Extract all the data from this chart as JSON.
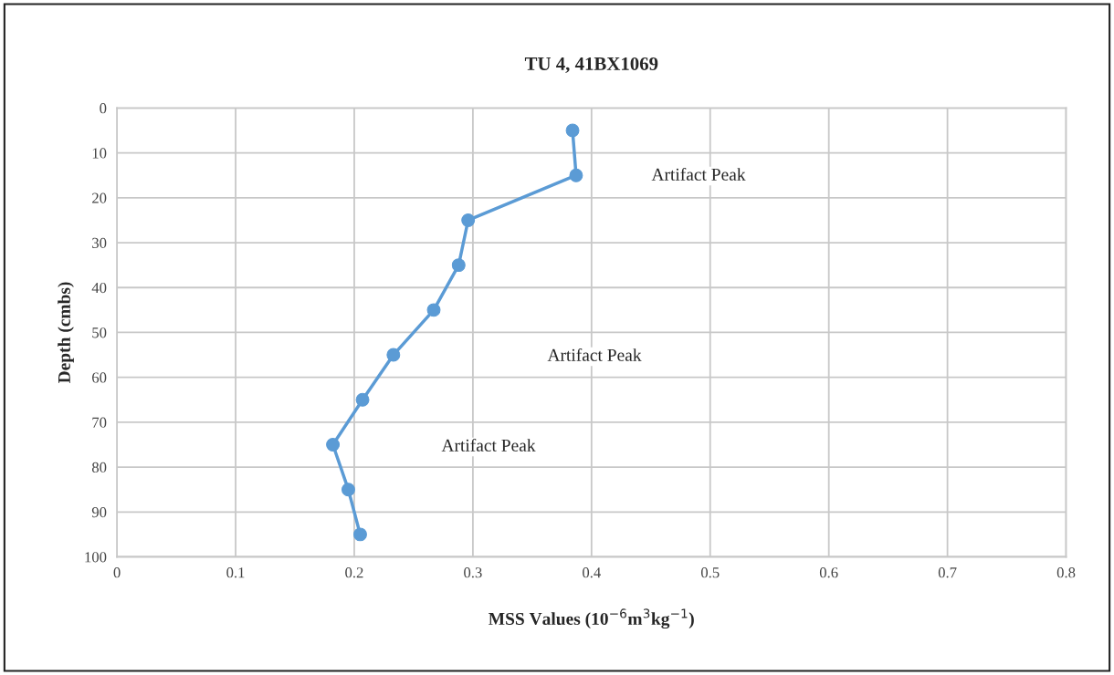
{
  "chart_data": {
    "type": "line",
    "title": "TU 4, 41BX1069",
    "xlabel": "MSS Values (10$^{−6}$m$^{3}$kg$^{−1}$)",
    "ylabel": "Depth (cmbs)",
    "x": [
      0.384,
      0.387,
      0.296,
      0.288,
      0.267,
      0.233,
      0.207,
      0.182,
      0.195,
      0.205
    ],
    "series": [
      {
        "color": "#5b9bd5",
        "values": [
          5,
          15,
          25,
          35,
          45,
          55,
          65,
          75,
          85,
          95
        ]
      }
    ],
    "xlim": [
      0,
      0.8
    ],
    "xticks": [
      0,
      0.1,
      0.2,
      0.3,
      0.4,
      0.5,
      0.6,
      0.7,
      0.8
    ],
    "ylim": [
      100,
      0
    ],
    "yticks": [
      0,
      10,
      20,
      30,
      40,
      50,
      60,
      70,
      80,
      90,
      100
    ],
    "grid": true,
    "marker": "circle",
    "line_style": "solid",
    "annotations": [
      "Artifact Peak",
      "Artifact Peak",
      "Artifact Peak"
    ]
  }
}
